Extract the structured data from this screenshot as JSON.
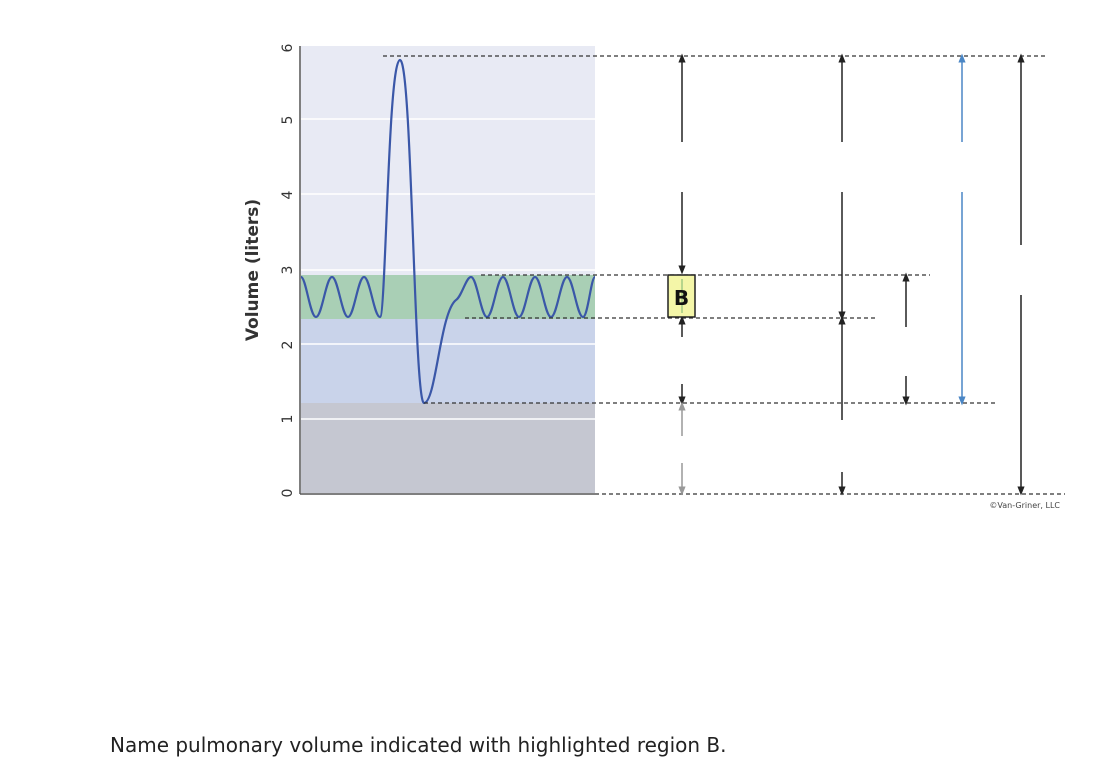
{
  "diagram": {
    "ylabel": "Volume (liters)",
    "y_ticks": [
      "0",
      "1",
      "2",
      "3",
      "4",
      "5",
      "6"
    ],
    "highlight_label": "B",
    "copyright": "©Van-Griner, LLC",
    "colors": {
      "upper_band": "#e8eaf4",
      "tidal_band": "#a9cfb5",
      "middle_band": "#c9d3ea",
      "residual_band": "#c5c7d1",
      "trace": "#3a57a8",
      "blue_arrow": "#4a86c5",
      "label_fill": "#f4f6a8",
      "arrow": "#222222"
    }
  },
  "question": {
    "text": "Name pulmonary volume indicated with highlighted region B."
  }
}
